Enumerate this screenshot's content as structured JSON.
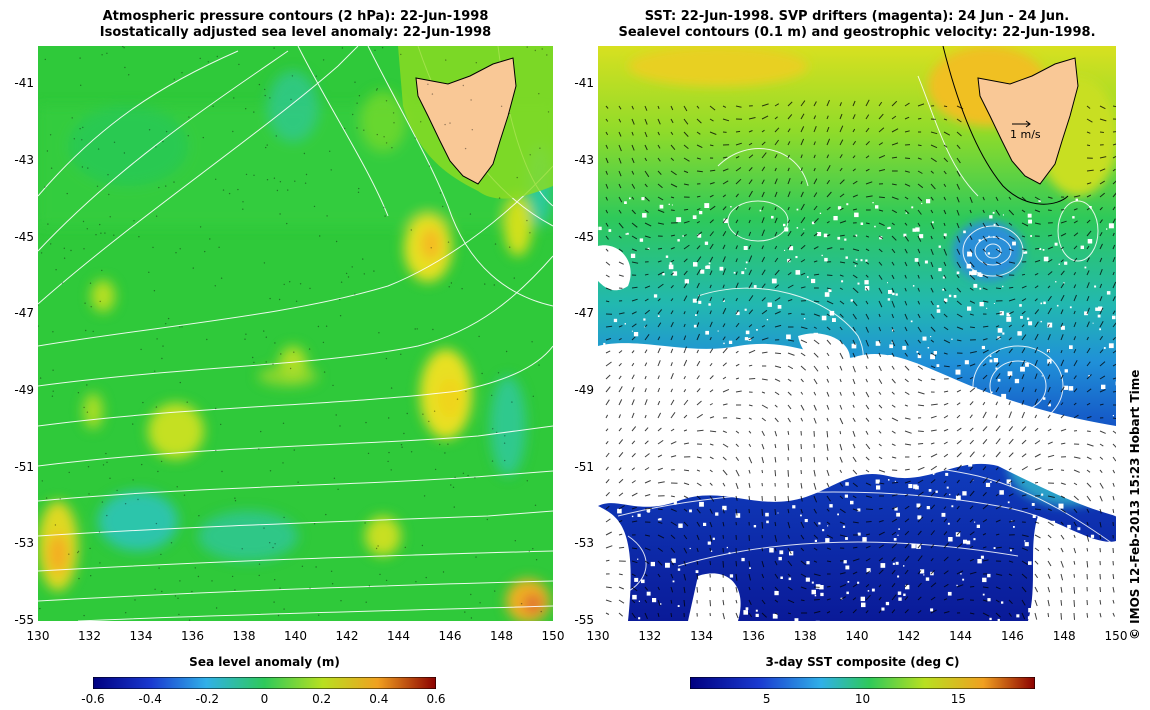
{
  "left_map": {
    "title_line1": "Atmospheric pressure contours (2 hPa): 22-Jun-1998",
    "title_line2": "Isostatically adjusted sea level anomaly: 22-Jun-1998",
    "lat_ticks": [
      "-41",
      "-43",
      "-45",
      "-47",
      "-49",
      "-51",
      "-53",
      "-55"
    ],
    "lon_ticks": [
      "130",
      "132",
      "134",
      "136",
      "138",
      "140",
      "142",
      "144",
      "146",
      "148",
      "150"
    ],
    "colorbar": {
      "label": "Sea level anomaly (m)",
      "ticks": [
        "-0.6",
        "-0.4",
        "-0.2",
        "0",
        "0.2",
        "0.4",
        "0.6"
      ],
      "range": [
        -0.6,
        0.6
      ]
    }
  },
  "right_map": {
    "title_line1": "SST: 22-Jun-1998. SVP drifters (magenta): 24 Jun - 24 Jun.",
    "title_line2": "Sealevel contours (0.1 m) and geostrophic velocity: 22-Jun-1998.",
    "lat_ticks": [
      "-41",
      "-43",
      "-45",
      "-47",
      "-49",
      "-51",
      "-53",
      "-55"
    ],
    "lon_ticks": [
      "130",
      "132",
      "134",
      "136",
      "138",
      "140",
      "142",
      "144",
      "146",
      "148",
      "150"
    ],
    "velocity_scale_label": "1 m/s",
    "colorbar": {
      "label": "3-day SST composite (deg C)",
      "ticks": [
        "5",
        "10",
        "15"
      ],
      "range": [
        1,
        19
      ]
    }
  },
  "credit": "© IMOS 12-Feb-2013 15:23 Hobart Time",
  "colors": {
    "land": "#f9c896",
    "ocean_green": "#2ecc3a",
    "contour": "#ffffff"
  }
}
